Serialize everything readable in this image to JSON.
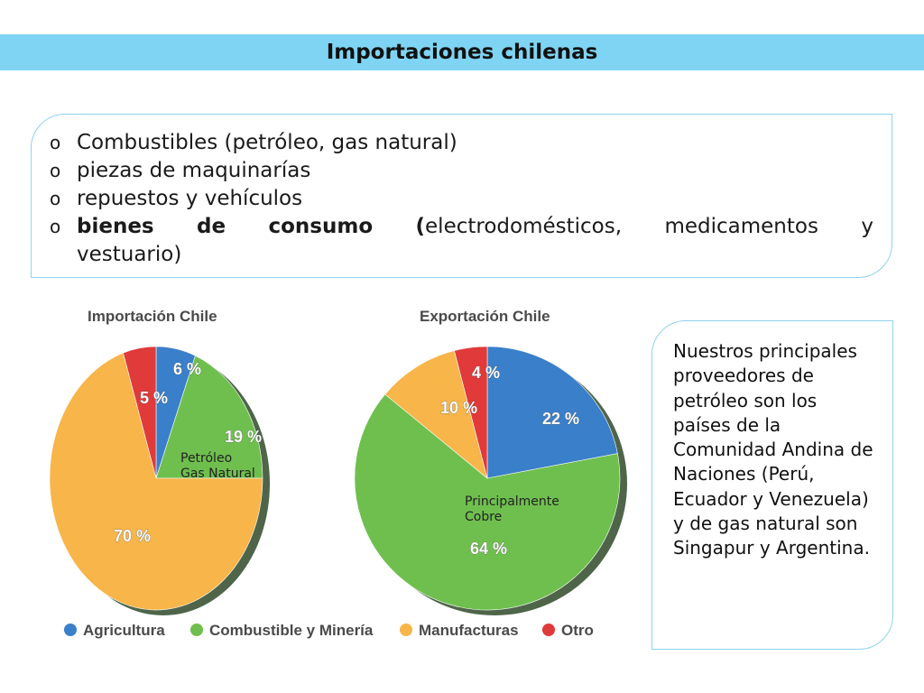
{
  "header": {
    "title": "Importaciones chilenas"
  },
  "bullets": {
    "marker": "o",
    "item1": "Combustibles (petróleo, gas natural)",
    "item2": "piezas de maquinarías",
    "item3": "repuestos y vehículos",
    "item4_word1": "bienes",
    "item4_word2": "de",
    "item4_word3": "consumo",
    "item4_word4": "(",
    "item4_rest1": "electrodomésticos,",
    "item4_rest2": "medicamentos",
    "item4_rest3": "y",
    "item4_line2": "vestuario)"
  },
  "side_note": "Nuestros principales proveedores de petróleo son los países de la Comunidad Andina de Naciones (Perú, Ecuador y Venezuela) y de gas natural son Singapur y Argentina.",
  "colors": {
    "title_bar": "#7fd4f3",
    "border": "#8fd3ee",
    "Agricultura": "#3a7fc9",
    "Combustible y Minería": "#6fbf4e",
    "Manufacturas": "#f7b54a",
    "Otro": "#e03a3a"
  },
  "chart_data": [
    {
      "type": "pie",
      "title": "Importación Chile",
      "categories": [
        "Agricultura",
        "Combustible y Minería",
        "Manufacturas",
        "Otro"
      ],
      "values": [
        6,
        19,
        70,
        5
      ],
      "data_labels": [
        "6 %",
        "19 %",
        "70 %",
        "5 %"
      ],
      "annotation": [
        "Petróleo",
        "Gas Natural"
      ],
      "legend": "bottom"
    },
    {
      "type": "pie",
      "title": "Exportación Chile",
      "categories": [
        "Agricultura",
        "Combustible y Minería",
        "Manufacturas",
        "Otro"
      ],
      "values": [
        22,
        64,
        10,
        4
      ],
      "data_labels": [
        "22 %",
        "64 %",
        "10 %",
        "4 %"
      ],
      "annotation": [
        "Principalmente",
        "Cobre"
      ],
      "legend": "bottom"
    }
  ]
}
